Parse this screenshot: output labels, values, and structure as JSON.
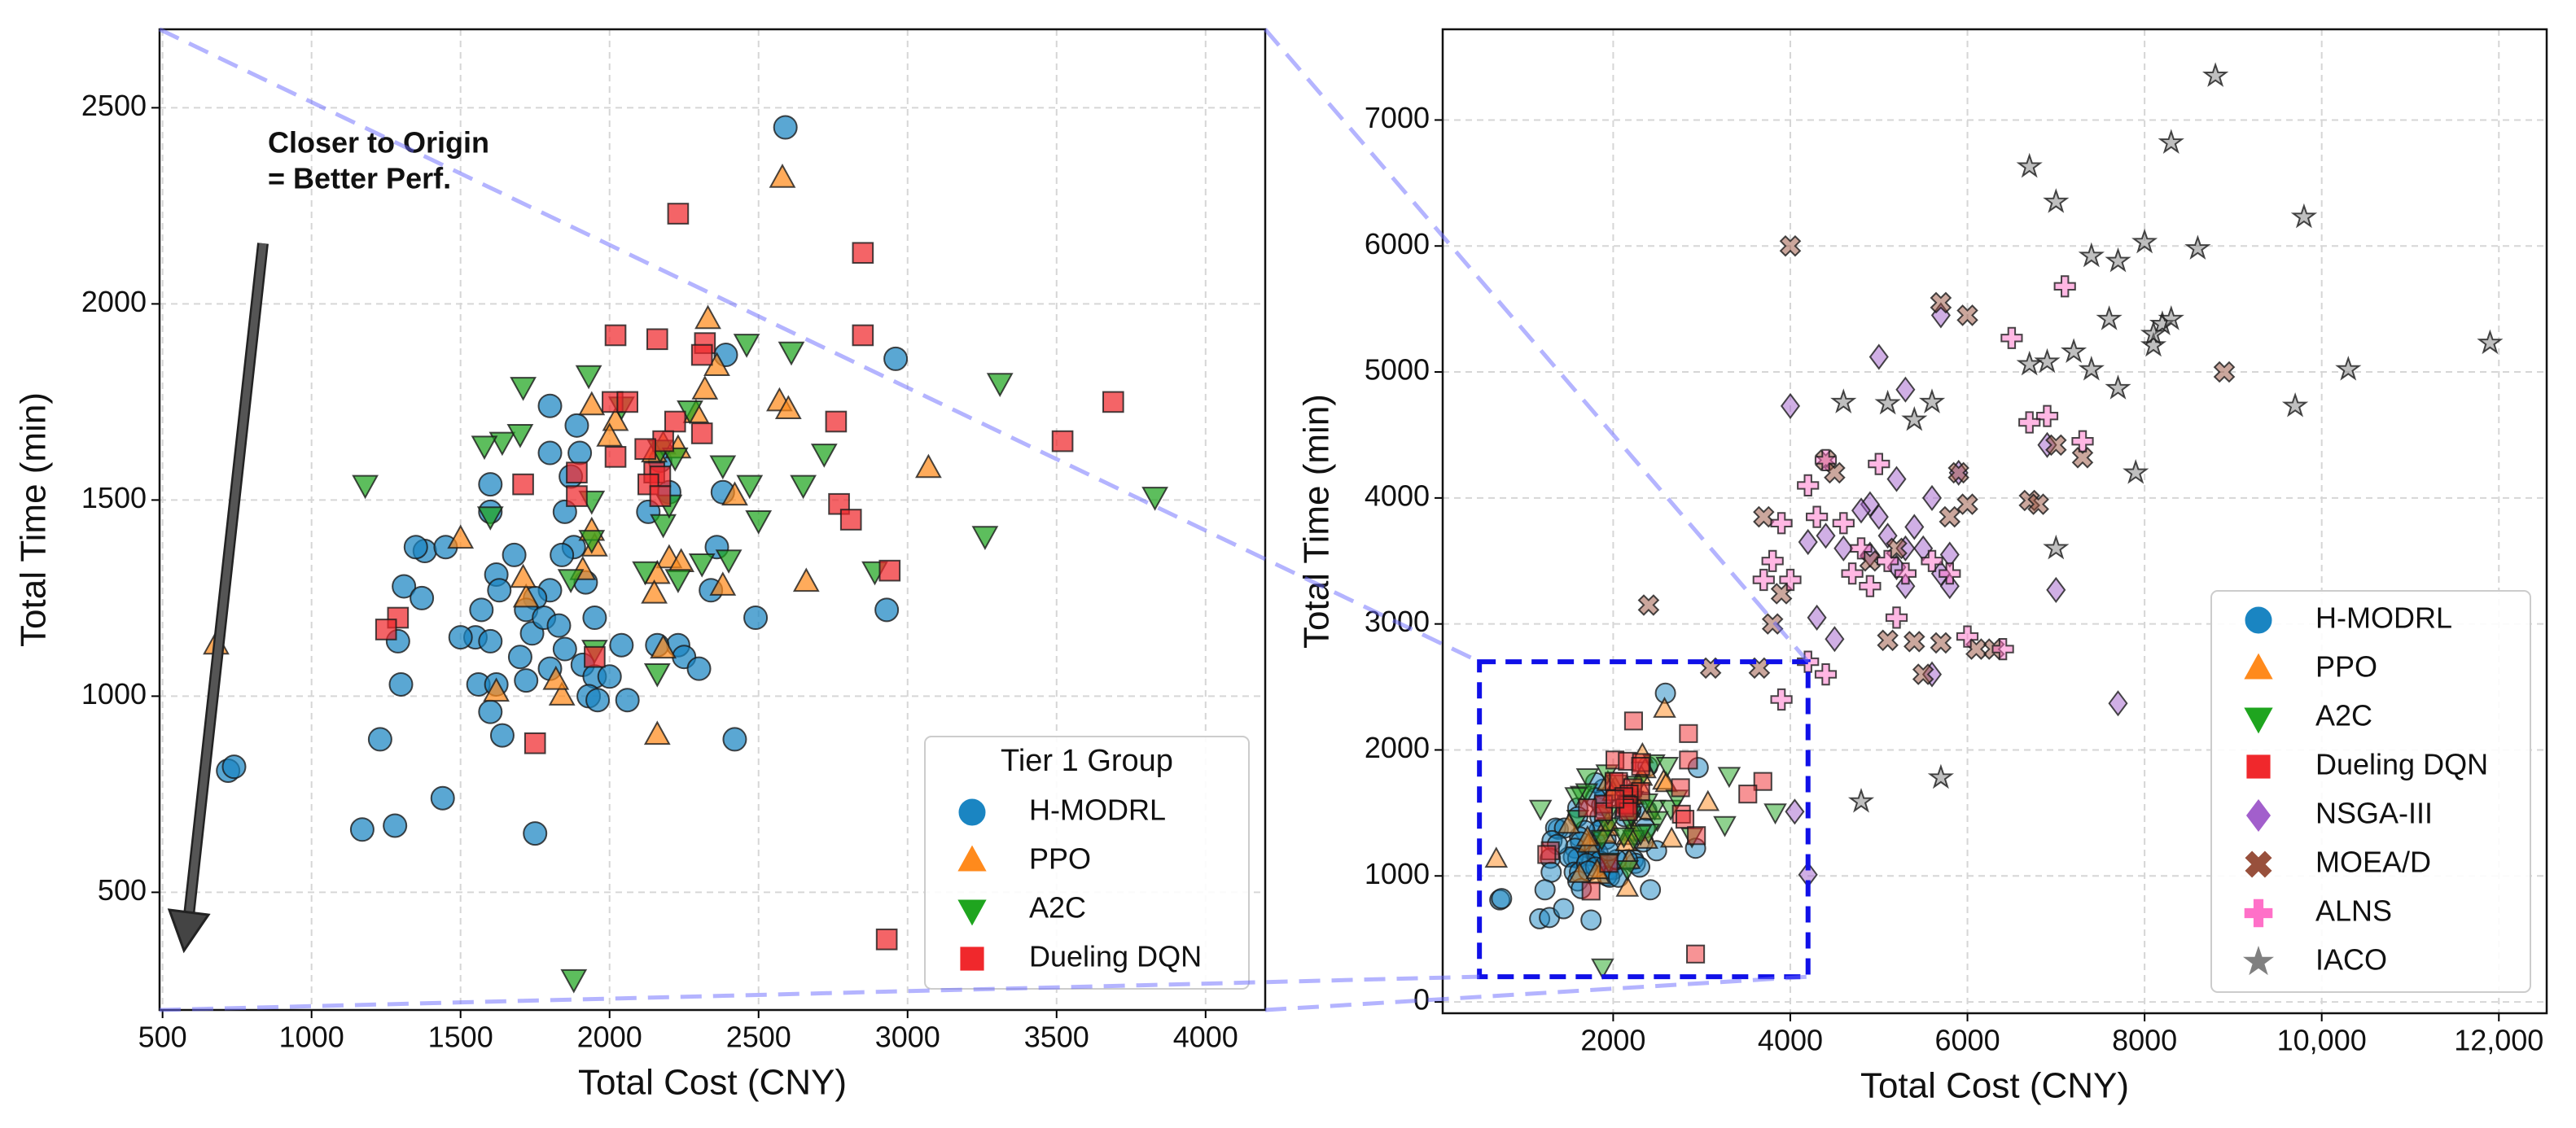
{
  "chart_data": [
    {
      "type": "scatter",
      "xlabel": "Total Cost (CNY)",
      "ylabel": "Total Time (min)",
      "xlim": [
        490,
        4200
      ],
      "ylim": [
        200,
        2700
      ],
      "xticks": [
        500,
        1000,
        1500,
        2000,
        2500,
        3000,
        3500,
        4000
      ],
      "yticks": [
        500,
        1000,
        1500,
        2000,
        2500
      ],
      "grid": true,
      "legend": "lower right",
      "legend_title": "Tier 1 Group",
      "annotation": [
        "Closer to Origin",
        "= Better Perf."
      ],
      "series": [
        {
          "name": "H-MODRL",
          "color": "#1a85c2",
          "marker": "circle",
          "x": [
            2590,
            2960,
            2930,
            2390,
            2380,
            2420,
            2490,
            2340,
            2360,
            2230,
            2250,
            2300,
            2200,
            2130,
            2170,
            1900,
            1890,
            1800,
            1800,
            1870,
            1850,
            1880,
            1920,
            1840,
            1800,
            1750,
            1720,
            1740,
            1780,
            1830,
            1850,
            1910,
            1950,
            2000,
            1930,
            1960,
            2060,
            2160,
            1600,
            1600,
            1680,
            1620,
            1630,
            1570,
            1550,
            1600,
            1500,
            1560,
            1620,
            1600,
            1640,
            1700,
            1800,
            1720,
            1380,
            1350,
            1450,
            1310,
            1370,
            1290,
            1300,
            1230,
            1170,
            1280,
            1440,
            1750,
            720,
            740,
            2040,
            1950
          ],
          "y": [
            2450,
            1860,
            1220,
            1870,
            1520,
            890,
            1200,
            1270,
            1380,
            1130,
            1100,
            1070,
            1520,
            1470,
            1600,
            1620,
            1690,
            1740,
            1620,
            1560,
            1470,
            1380,
            1290,
            1360,
            1270,
            1250,
            1220,
            1160,
            1200,
            1180,
            1120,
            1080,
            1050,
            1050,
            1000,
            990,
            990,
            1130,
            1540,
            1470,
            1360,
            1310,
            1270,
            1220,
            1150,
            1140,
            1150,
            1030,
            1030,
            960,
            900,
            1100,
            1070,
            1040,
            1370,
            1380,
            1380,
            1280,
            1250,
            1140,
            1030,
            890,
            660,
            670,
            740,
            650,
            810,
            820,
            1130,
            1200
          ]
        },
        {
          "name": "PPO",
          "color": "#ff8a1c",
          "marker": "triangle-up",
          "x": [
            2580,
            2330,
            2360,
            2570,
            2600,
            1940,
            2020,
            2000,
            2180,
            2230,
            2150,
            2320,
            2290,
            2420,
            3070,
            1950,
            1940,
            2200,
            2240,
            2380,
            2660,
            2160,
            1910,
            2180,
            1720,
            1620,
            1500,
            680,
            1840,
            1820,
            2160,
            1710,
            2150
          ],
          "y": [
            2320,
            1960,
            1840,
            1750,
            1730,
            1740,
            1700,
            1660,
            1640,
            1630,
            1620,
            1780,
            1720,
            1510,
            1580,
            1380,
            1420,
            1350,
            1340,
            1280,
            1290,
            1310,
            1320,
            1120,
            1250,
            1010,
            1400,
            1130,
            1000,
            1040,
            900,
            1300,
            1260
          ]
        },
        {
          "name": "A2C",
          "color": "#1fa51f",
          "marker": "triangle-down",
          "x": [
            2460,
            2610,
            3310,
            3830,
            1710,
            1930,
            2040,
            1640,
            1700,
            1580,
            1180,
            1600,
            2170,
            2270,
            2220,
            2180,
            2200,
            2470,
            2500,
            2650,
            2720,
            2400,
            2230,
            2310,
            2890,
            3260,
            1940,
            1870,
            1950,
            2160,
            1880,
            2380,
            1940,
            2120
          ],
          "y": [
            1900,
            1880,
            1800,
            1510,
            1790,
            1820,
            1740,
            1650,
            1670,
            1640,
            1540,
            1460,
            1630,
            1730,
            1610,
            1440,
            1490,
            1540,
            1450,
            1540,
            1620,
            1350,
            1300,
            1340,
            1320,
            1410,
            1400,
            1300,
            1120,
            1060,
            280,
            1590,
            1500,
            1320
          ]
        },
        {
          "name": "Dueling DQN",
          "color": "#f0282c",
          "marker": "square",
          "x": [
            2230,
            2850,
            2020,
            2160,
            2320,
            2310,
            2850,
            2010,
            2060,
            2220,
            2310,
            2180,
            2120,
            2150,
            2170,
            2130,
            2170,
            1890,
            1890,
            2020,
            2760,
            3690,
            3520,
            2770,
            2810,
            2940,
            1710,
            1290,
            1250,
            1950,
            1750,
            2930
          ],
          "y": [
            2230,
            2130,
            1920,
            1910,
            1900,
            1870,
            1920,
            1750,
            1750,
            1700,
            1670,
            1650,
            1630,
            1570,
            1560,
            1540,
            1510,
            1570,
            1510,
            1610,
            1700,
            1750,
            1650,
            1490,
            1450,
            1320,
            1540,
            1200,
            1170,
            1100,
            880,
            380
          ]
        }
      ]
    },
    {
      "type": "scatter",
      "xlabel": "Total Cost (CNY)",
      "ylabel": "Total Time (min)",
      "xlim": [
        75,
        12540
      ],
      "ylim": [
        -90,
        7720
      ],
      "xticks": [
        2000,
        4000,
        6000,
        8000,
        {
          "value": 10000,
          "label": "10,000"
        },
        {
          "value": 12000,
          "label": "12,000"
        }
      ],
      "yticks": [
        0,
        1000,
        2000,
        3000,
        4000,
        5000,
        6000,
        7000
      ],
      "grid": true,
      "legend": "lower right",
      "series": [
        {
          "name": "NSGA-III",
          "color": "#a25fcc",
          "marker": "diamond",
          "x": [
            5000,
            5700,
            4000,
            5300,
            6900,
            5600,
            5200,
            4900,
            5000,
            5400,
            5100,
            5500,
            4200,
            4600,
            4400,
            4900,
            5800,
            5200,
            5300,
            5700,
            4300,
            4500,
            5800,
            7000,
            5600,
            7700,
            4050,
            4200,
            4800,
            5900,
            5300
          ],
          "y": [
            5120,
            5450,
            4730,
            4860,
            4420,
            4000,
            4150,
            3950,
            3850,
            3770,
            3700,
            3600,
            3650,
            3600,
            3700,
            3550,
            3550,
            3450,
            3300,
            3400,
            3050,
            2880,
            3300,
            3270,
            2600,
            2370,
            1510,
            1010,
            3900,
            4200,
            3600
          ]
        },
        {
          "name": "MOEA/D",
          "color": "#98503c",
          "marker": "x",
          "x": [
            4000,
            5700,
            6000,
            7000,
            7300,
            5900,
            6700,
            6000,
            4400,
            3700,
            4500,
            4900,
            5200,
            3900,
            3800,
            2400,
            3100,
            5100,
            5400,
            5700,
            5500,
            6100,
            6300,
            8900,
            3650,
            6800,
            5800
          ],
          "y": [
            6000,
            5550,
            5450,
            4420,
            4320,
            4200,
            3980,
            3950,
            4300,
            3850,
            4200,
            3500,
            3600,
            3240,
            3000,
            3150,
            2650,
            2870,
            2860,
            2850,
            2600,
            2800,
            2800,
            5000,
            2650,
            3950,
            3850
          ]
        },
        {
          "name": "ALNS",
          "color": "#ff70c8",
          "marker": "plus",
          "x": [
            7100,
            6500,
            6900,
            6700,
            7300,
            4400,
            5000,
            4200,
            3900,
            4300,
            4600,
            3800,
            4000,
            4700,
            4900,
            5100,
            5300,
            4200,
            4400,
            3900,
            5600,
            5800,
            5200,
            6400,
            6000,
            3700,
            4800
          ],
          "y": [
            5680,
            5270,
            4650,
            4600,
            4450,
            4300,
            4270,
            4100,
            3800,
            3850,
            3800,
            3500,
            3350,
            3400,
            3300,
            3500,
            3400,
            2700,
            2600,
            2400,
            3500,
            3400,
            3050,
            2800,
            2900,
            3350,
            3600
          ]
        },
        {
          "name": "IACO",
          "color": "#808080",
          "marker": "star",
          "x": [
            8800,
            6700,
            8300,
            7000,
            8000,
            7400,
            8600,
            7700,
            9800,
            7600,
            8200,
            8300,
            8100,
            7200,
            6900,
            6700,
            7400,
            7700,
            8100,
            9700,
            10300,
            11900,
            7900,
            4600,
            5100,
            5400,
            5600,
            4800,
            5700,
            7000
          ],
          "y": [
            7350,
            6630,
            6820,
            6350,
            6030,
            5920,
            5980,
            5880,
            6230,
            5420,
            5380,
            5420,
            5210,
            5160,
            5080,
            5060,
            5020,
            4870,
            5300,
            4730,
            5020,
            5230,
            4200,
            4760,
            4750,
            4620,
            4760,
            1590,
            1780,
            3600
          ]
        }
      ]
    }
  ]
}
